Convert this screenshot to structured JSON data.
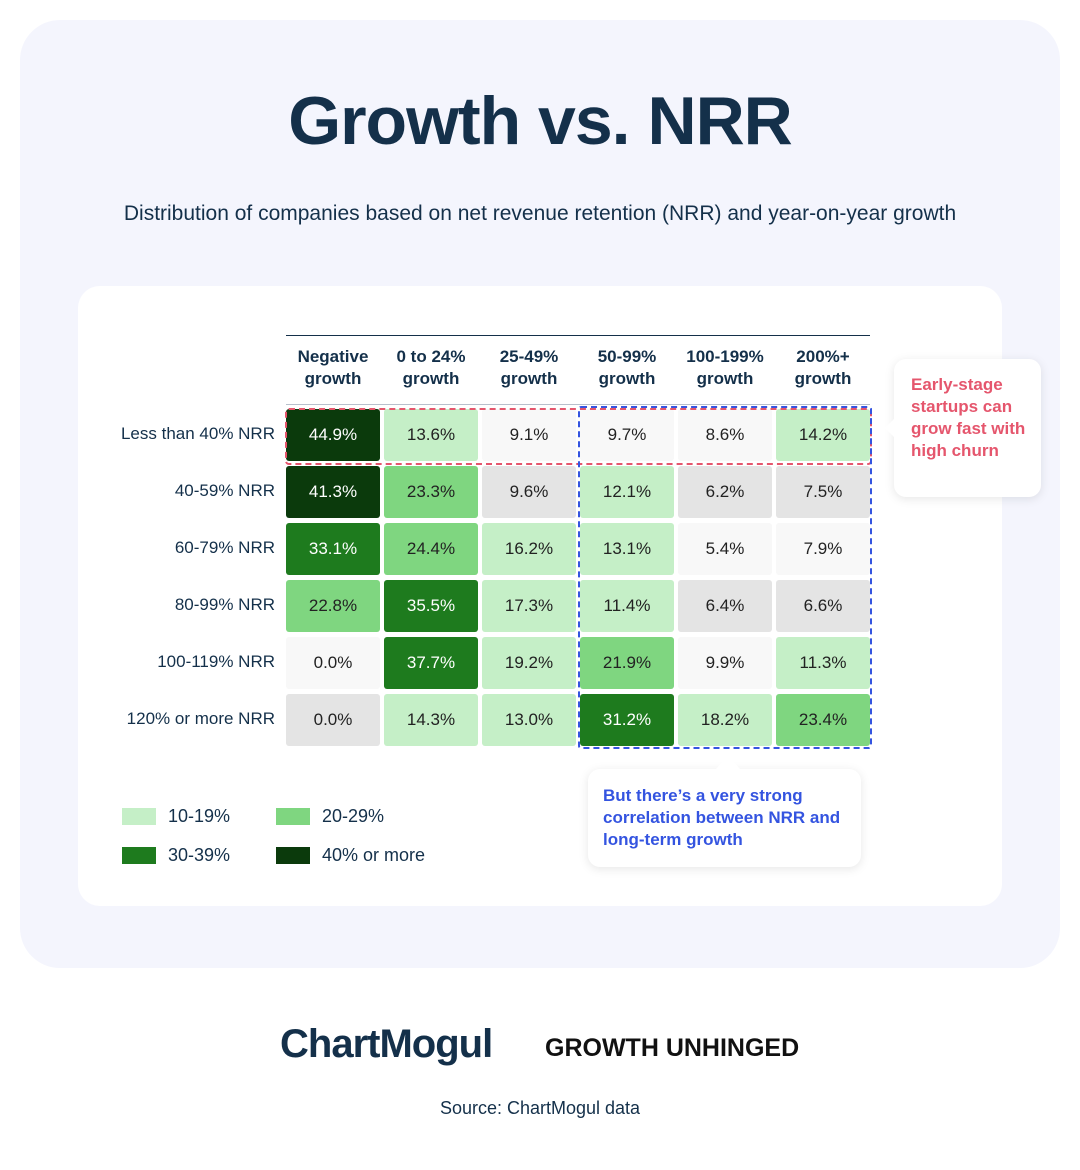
{
  "chart_data": {
    "type": "heatmap",
    "title": "Growth vs. NRR",
    "subtitle": "Distribution of companies based on net revenue retention (NRR) and year-on-year growth",
    "columns": [
      "Negative growth",
      "0 to 24% growth",
      "25-49% growth",
      "50-99% growth",
      "100-199% growth",
      "200%+ growth"
    ],
    "column_lines": [
      [
        "Negative",
        "growth"
      ],
      [
        "0 to 24%",
        "growth"
      ],
      [
        "25-49%",
        "growth"
      ],
      [
        "50-99%",
        "growth"
      ],
      [
        "100-199%",
        "growth"
      ],
      [
        "200%+",
        "growth"
      ]
    ],
    "rows": [
      "Less than 40% NRR",
      "40-59% NRR",
      "60-79% NRR",
      "80-99% NRR",
      "100-119% NRR",
      "120% or more NRR"
    ],
    "values": [
      [
        44.9,
        13.6,
        9.1,
        9.7,
        8.6,
        14.2
      ],
      [
        41.3,
        23.3,
        9.6,
        12.1,
        6.2,
        7.5
      ],
      [
        33.1,
        24.4,
        16.2,
        13.1,
        5.4,
        7.9
      ],
      [
        22.8,
        35.5,
        17.3,
        11.4,
        6.4,
        6.6
      ],
      [
        0.0,
        37.7,
        19.2,
        21.9,
        9.9,
        11.3
      ],
      [
        0.0,
        14.3,
        13.0,
        31.2,
        18.2,
        23.4
      ]
    ],
    "legend": [
      {
        "label": "10-19%",
        "color": "#c5efc7"
      },
      {
        "label": "20-29%",
        "color": "#7fd680"
      },
      {
        "label": "30-39%",
        "color": "#1e7b1e"
      },
      {
        "label": "40% or more",
        "color": "#0b3a0c"
      }
    ],
    "below_10_colors": [
      "#f8f8f8",
      "#e4e4e4"
    ],
    "annotations": {
      "red": "Early-stage startups can grow fast with high churn",
      "blue": "But there’s a very strong correlation between NRR and long-term growth"
    },
    "annotation_colors": {
      "red": "#e5566d",
      "blue": "#3454e0"
    }
  },
  "footer": {
    "logo1": "ChartMogul",
    "logo2": "GROWTH UNHINGED",
    "source": "Source: ChartMogul data"
  }
}
